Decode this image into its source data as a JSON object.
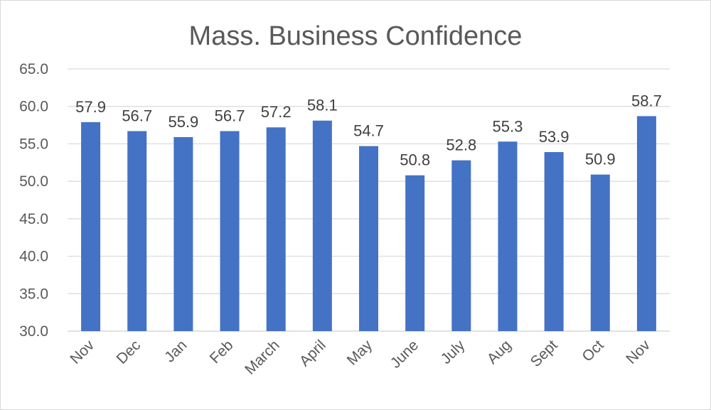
{
  "chart_data": {
    "type": "bar",
    "title": "Mass. Business Confidence",
    "xlabel": "",
    "ylabel": "",
    "ylim": [
      30.0,
      65.0
    ],
    "ytick_step": 5.0,
    "yticks": [
      "30.0",
      "35.0",
      "40.0",
      "45.0",
      "50.0",
      "55.0",
      "60.0",
      "65.0"
    ],
    "categories": [
      "Nov",
      "Dec",
      "Jan",
      "Feb",
      "March",
      "April",
      "May",
      "June",
      "July",
      "Aug",
      "Sept",
      "Oct",
      "Nov"
    ],
    "values": [
      57.9,
      56.7,
      55.9,
      56.7,
      57.2,
      58.1,
      54.7,
      50.8,
      52.8,
      55.3,
      53.9,
      50.9,
      58.7
    ],
    "data_labels": [
      "57.9",
      "56.7",
      "55.9",
      "56.7",
      "57.2",
      "58.1",
      "54.7",
      "50.8",
      "52.8",
      "55.3",
      "53.9",
      "50.9",
      "58.7"
    ],
    "grid": "horizontal",
    "legend": "none",
    "colors": {
      "bar": "#4472C4",
      "grid": "#D9D9D9",
      "text": "#595959"
    }
  }
}
